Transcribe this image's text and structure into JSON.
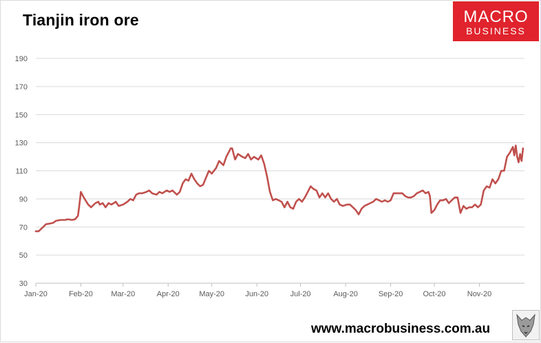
{
  "header": {
    "title": "Tianjin iron ore",
    "logo_line1": "MACRO",
    "logo_line2": "BUSINESS"
  },
  "footer": {
    "url": "www.macrobusiness.com.au"
  },
  "colors": {
    "line": "#c0504d",
    "logo_bg": "#e0232c",
    "grid": "#d9d9d9"
  },
  "icons": {
    "wolf": "wolf-logo-icon"
  },
  "chart_data": {
    "type": "line",
    "title": "Tianjin iron ore",
    "xlabel": "",
    "ylabel": "",
    "ylim": [
      30,
      190
    ],
    "yticks": [
      30,
      50,
      70,
      90,
      110,
      130,
      150,
      170,
      190
    ],
    "xlim": [
      "2020-01-01",
      "2020-12-02"
    ],
    "xticks": [
      {
        "label": "Jan-20",
        "date": "2020-01-01"
      },
      {
        "label": "Feb-20",
        "date": "2020-02-01"
      },
      {
        "label": "Mar-20",
        "date": "2020-03-01"
      },
      {
        "label": "Apr-20",
        "date": "2020-04-01"
      },
      {
        "label": "May-20",
        "date": "2020-05-01"
      },
      {
        "label": "Jun-20",
        "date": "2020-06-01"
      },
      {
        "label": "Jul-20",
        "date": "2020-07-01"
      },
      {
        "label": "Aug-20",
        "date": "2020-08-01"
      },
      {
        "label": "Sep-20",
        "date": "2020-09-01"
      },
      {
        "label": "Oct-20",
        "date": "2020-10-01"
      },
      {
        "label": "Nov-20",
        "date": "2020-11-01"
      }
    ],
    "grid": true,
    "series": [
      {
        "points": [
          [
            "2020-01-01",
            67
          ],
          [
            "2020-01-03",
            67
          ],
          [
            "2020-01-06",
            70
          ],
          [
            "2020-01-08",
            72
          ],
          [
            "2020-01-11",
            72.5
          ],
          [
            "2020-01-13",
            73
          ],
          [
            "2020-01-15",
            74.5
          ],
          [
            "2020-01-18",
            75
          ],
          [
            "2020-01-21",
            75
          ],
          [
            "2020-01-23",
            75.5
          ],
          [
            "2020-01-26",
            75
          ],
          [
            "2020-01-28",
            75.5
          ],
          [
            "2020-01-30",
            78
          ],
          [
            "2020-01-31",
            86
          ],
          [
            "2020-02-01",
            95
          ],
          [
            "2020-02-03",
            91
          ],
          [
            "2020-02-06",
            86
          ],
          [
            "2020-02-08",
            84
          ],
          [
            "2020-02-11",
            87
          ],
          [
            "2020-02-13",
            88
          ],
          [
            "2020-02-14",
            86
          ],
          [
            "2020-02-16",
            87
          ],
          [
            "2020-02-18",
            84
          ],
          [
            "2020-02-20",
            87
          ],
          [
            "2020-02-22",
            86
          ],
          [
            "2020-02-25",
            88
          ],
          [
            "2020-02-27",
            85
          ],
          [
            "2020-03-01",
            86
          ],
          [
            "2020-03-04",
            88
          ],
          [
            "2020-03-06",
            90
          ],
          [
            "2020-03-08",
            89
          ],
          [
            "2020-03-10",
            93
          ],
          [
            "2020-03-12",
            94
          ],
          [
            "2020-03-14",
            94
          ],
          [
            "2020-03-17",
            95
          ],
          [
            "2020-03-19",
            96
          ],
          [
            "2020-03-21",
            94
          ],
          [
            "2020-03-24",
            93
          ],
          [
            "2020-03-26",
            95
          ],
          [
            "2020-03-28",
            94
          ],
          [
            "2020-03-31",
            96
          ],
          [
            "2020-04-02",
            95
          ],
          [
            "2020-04-04",
            96
          ],
          [
            "2020-04-07",
            93
          ],
          [
            "2020-04-09",
            95
          ],
          [
            "2020-04-11",
            101
          ],
          [
            "2020-04-13",
            104
          ],
          [
            "2020-04-15",
            103
          ],
          [
            "2020-04-17",
            108
          ],
          [
            "2020-04-19",
            104
          ],
          [
            "2020-04-21",
            101
          ],
          [
            "2020-04-23",
            99
          ],
          [
            "2020-04-25",
            100
          ],
          [
            "2020-04-27",
            105
          ],
          [
            "2020-04-29",
            110
          ],
          [
            "2020-05-01",
            108
          ],
          [
            "2020-05-04",
            112
          ],
          [
            "2020-05-06",
            117
          ],
          [
            "2020-05-09",
            114
          ],
          [
            "2020-05-11",
            120
          ],
          [
            "2020-05-14",
            126
          ],
          [
            "2020-05-15",
            126
          ],
          [
            "2020-05-17",
            118
          ],
          [
            "2020-05-19",
            122
          ],
          [
            "2020-05-22",
            120
          ],
          [
            "2020-05-24",
            119
          ],
          [
            "2020-05-26",
            122
          ],
          [
            "2020-05-28",
            118
          ],
          [
            "2020-05-30",
            120
          ],
          [
            "2020-06-02",
            118
          ],
          [
            "2020-06-04",
            121
          ],
          [
            "2020-06-06",
            115
          ],
          [
            "2020-06-08",
            106
          ],
          [
            "2020-06-10",
            95
          ],
          [
            "2020-06-12",
            89
          ],
          [
            "2020-06-14",
            90
          ],
          [
            "2020-06-16",
            89
          ],
          [
            "2020-06-18",
            88
          ],
          [
            "2020-06-20",
            84
          ],
          [
            "2020-06-22",
            88
          ],
          [
            "2020-06-24",
            84
          ],
          [
            "2020-06-26",
            83
          ],
          [
            "2020-06-28",
            88
          ],
          [
            "2020-06-30",
            90
          ],
          [
            "2020-07-02",
            88
          ],
          [
            "2020-07-04",
            91
          ],
          [
            "2020-07-06",
            95
          ],
          [
            "2020-07-08",
            99
          ],
          [
            "2020-07-10",
            97
          ],
          [
            "2020-07-12",
            96
          ],
          [
            "2020-07-14",
            91
          ],
          [
            "2020-07-16",
            94
          ],
          [
            "2020-07-18",
            91
          ],
          [
            "2020-07-20",
            94
          ],
          [
            "2020-07-22",
            90
          ],
          [
            "2020-07-24",
            88
          ],
          [
            "2020-07-26",
            90
          ],
          [
            "2020-07-28",
            86
          ],
          [
            "2020-07-30",
            85
          ],
          [
            "2020-08-02",
            86
          ],
          [
            "2020-08-04",
            86
          ],
          [
            "2020-08-06",
            84
          ],
          [
            "2020-08-08",
            82
          ],
          [
            "2020-08-10",
            79
          ],
          [
            "2020-08-12",
            83
          ],
          [
            "2020-08-14",
            85
          ],
          [
            "2020-08-16",
            86
          ],
          [
            "2020-08-18",
            87
          ],
          [
            "2020-08-20",
            88
          ],
          [
            "2020-08-22",
            90
          ],
          [
            "2020-08-24",
            89
          ],
          [
            "2020-08-26",
            88
          ],
          [
            "2020-08-28",
            89
          ],
          [
            "2020-08-30",
            88
          ],
          [
            "2020-09-01",
            89
          ],
          [
            "2020-09-03",
            94
          ],
          [
            "2020-09-05",
            94
          ],
          [
            "2020-09-07",
            94
          ],
          [
            "2020-09-09",
            94
          ],
          [
            "2020-09-11",
            92
          ],
          [
            "2020-09-13",
            91
          ],
          [
            "2020-09-15",
            91
          ],
          [
            "2020-09-17",
            92
          ],
          [
            "2020-09-19",
            94
          ],
          [
            "2020-09-21",
            95
          ],
          [
            "2020-09-23",
            96
          ],
          [
            "2020-09-25",
            94
          ],
          [
            "2020-09-27",
            95
          ],
          [
            "2020-09-28",
            92
          ],
          [
            "2020-09-29",
            80
          ],
          [
            "2020-10-01",
            82
          ],
          [
            "2020-10-03",
            86
          ],
          [
            "2020-10-05",
            89
          ],
          [
            "2020-10-07",
            89
          ],
          [
            "2020-10-09",
            90
          ],
          [
            "2020-10-11",
            87
          ],
          [
            "2020-10-13",
            89
          ],
          [
            "2020-10-15",
            91
          ],
          [
            "2020-10-17",
            91
          ],
          [
            "2020-10-19",
            80
          ],
          [
            "2020-10-21",
            85
          ],
          [
            "2020-10-23",
            83
          ],
          [
            "2020-10-25",
            84
          ],
          [
            "2020-10-27",
            84
          ],
          [
            "2020-10-29",
            86
          ],
          [
            "2020-10-31",
            84
          ],
          [
            "2020-11-02",
            86
          ],
          [
            "2020-11-04",
            96
          ],
          [
            "2020-11-06",
            99
          ],
          [
            "2020-11-08",
            98
          ],
          [
            "2020-11-10",
            104
          ],
          [
            "2020-11-12",
            101
          ],
          [
            "2020-11-14",
            104
          ],
          [
            "2020-11-16",
            110
          ],
          [
            "2020-11-18",
            110
          ],
          [
            "2020-11-20",
            120
          ],
          [
            "2020-11-22",
            123
          ],
          [
            "2020-11-24",
            127
          ],
          [
            "2020-11-25",
            121
          ],
          [
            "2020-11-26",
            128
          ],
          [
            "2020-11-27",
            120
          ],
          [
            "2020-11-28",
            116
          ],
          [
            "2020-11-29",
            122
          ],
          [
            "2020-11-30",
            117
          ],
          [
            "2020-12-01",
            126
          ]
        ]
      }
    ]
  }
}
